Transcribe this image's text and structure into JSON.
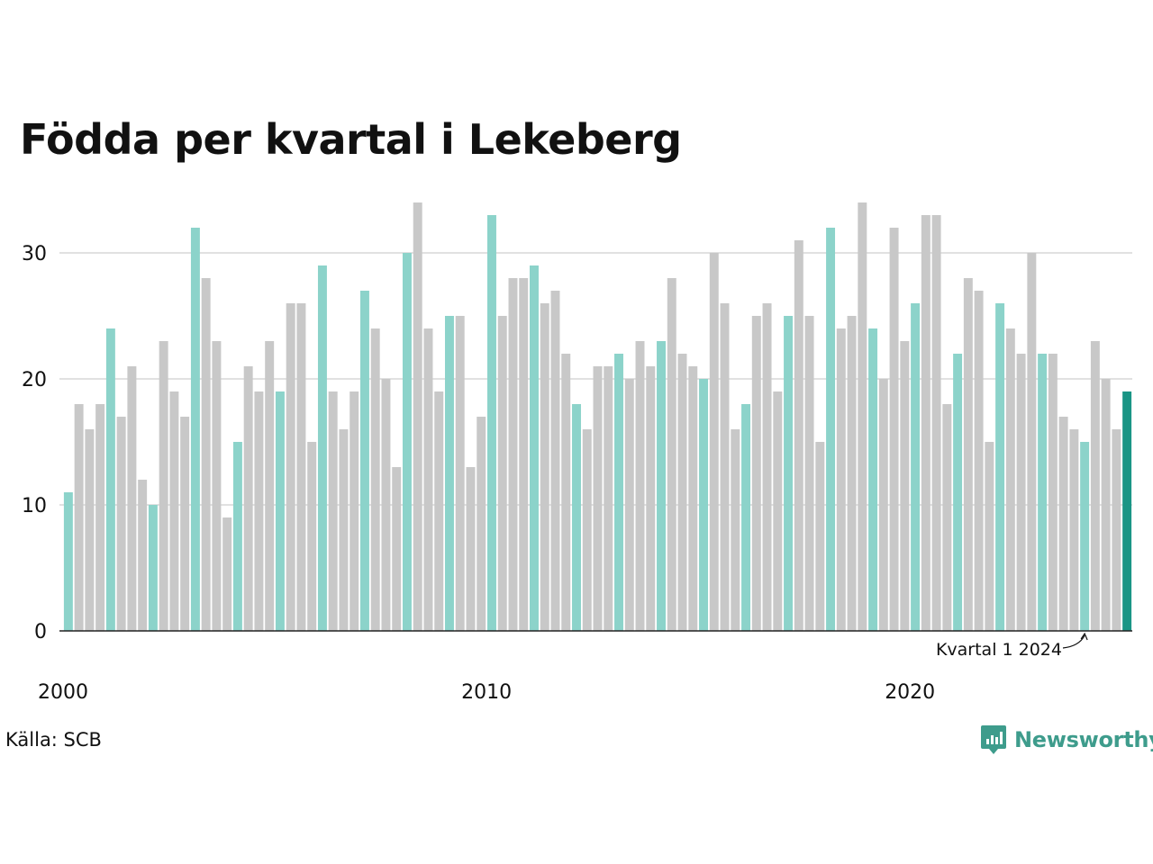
{
  "title": "Födda per kvartal i Lekeberg",
  "source": "Källa: SCB",
  "brand": "Newsworthy",
  "colors": {
    "bar": "#c8c8c8",
    "q1": "#8cd3ca",
    "latest": "#1a9585",
    "grid": "#e1e1e1",
    "axis": "#222222",
    "brand": "#3e9c8c"
  },
  "chart_data": {
    "type": "bar",
    "title": "Födda per kvartal i Lekeberg",
    "ylim": [
      0,
      34
    ],
    "yticks": [
      0,
      10,
      20,
      30
    ],
    "xticks": [
      {
        "label": "2000",
        "index": 0
      },
      {
        "label": "2010",
        "index": 40
      },
      {
        "label": "2020",
        "index": 80
      }
    ],
    "start": {
      "year": 2000,
      "quarter": 1
    },
    "values": [
      11,
      18,
      16,
      18,
      24,
      17,
      21,
      12,
      10,
      23,
      19,
      17,
      32,
      28,
      23,
      9,
      15,
      21,
      19,
      23,
      19,
      26,
      26,
      15,
      29,
      19,
      16,
      19,
      27,
      24,
      20,
      13,
      30,
      34,
      24,
      19,
      25,
      25,
      13,
      17,
      33,
      25,
      28,
      28,
      29,
      26,
      27,
      22,
      18,
      16,
      21,
      21,
      22,
      20,
      23,
      21,
      23,
      28,
      22,
      21,
      20,
      30,
      26,
      16,
      18,
      25,
      26,
      19,
      25,
      31,
      25,
      15,
      32,
      24,
      25,
      34,
      24,
      20,
      32,
      23,
      26,
      33,
      33,
      18,
      22,
      28,
      27,
      15,
      26,
      24,
      22,
      30,
      22,
      22,
      17,
      16,
      15,
      23,
      20,
      16,
      19
    ],
    "annotation": {
      "label": "Kvartal 1 2024",
      "index": 96
    },
    "grid": true
  }
}
